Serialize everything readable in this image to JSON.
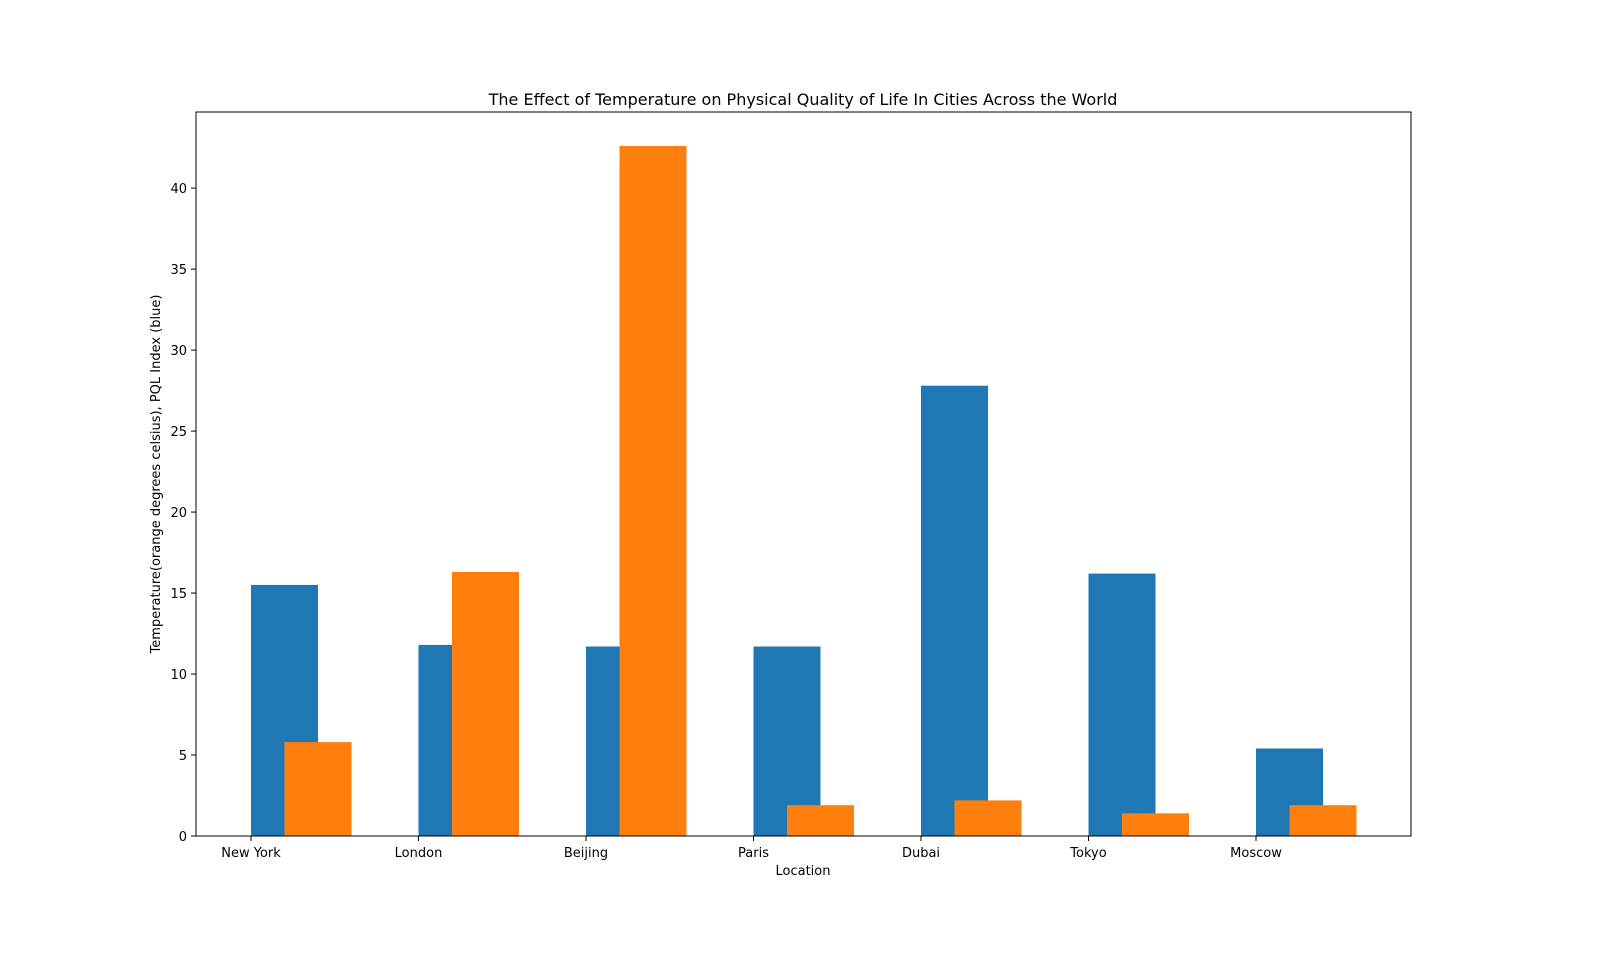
{
  "chart_data": {
    "type": "bar",
    "title": "The Effect of Temperature on Physical Quality of Life In Cities Across the World",
    "xlabel": "Location",
    "ylabel": "Temperature(orange degrees celsius), PQL Index (blue)",
    "categories": [
      "New York",
      "London",
      "Beijing",
      "Paris",
      "Dubai",
      "Tokyo",
      "Moscow"
    ],
    "series": [
      {
        "color": "#1f77b4",
        "values": [
          15.5,
          11.8,
          11.7,
          11.7,
          27.8,
          16.2,
          5.4
        ]
      },
      {
        "color": "#ff7f0e",
        "values": [
          5.8,
          16.3,
          42.6,
          1.9,
          2.2,
          1.4,
          1.9
        ]
      }
    ],
    "yticks": [
      0,
      5,
      10,
      15,
      20,
      25,
      30,
      35,
      40
    ],
    "ylim": [
      0,
      44.7
    ],
    "grid": false,
    "legend": "none"
  }
}
